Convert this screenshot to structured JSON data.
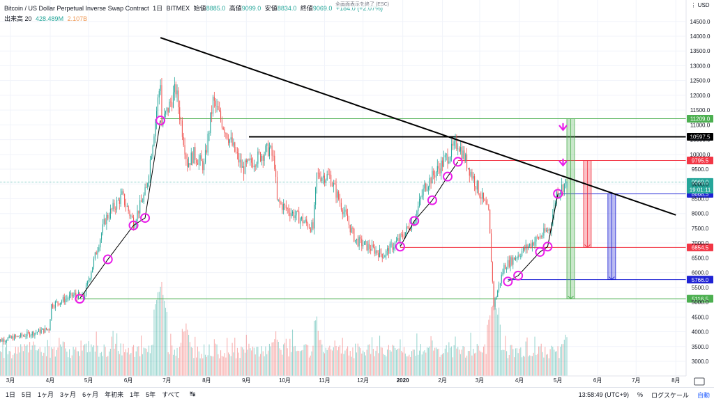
{
  "header": {
    "symbol": "Bitcoin / US Dollar Perpetual Inverse Swap Contract",
    "interval": "1日",
    "exchange": "BITMEX",
    "open_label": "始値",
    "open": "8885.0",
    "high_label": "高値",
    "high": "9099.0",
    "low_label": "安値",
    "low": "8834.0",
    "close_label": "終値",
    "close": "9069.0",
    "change": "+184.0 (+2.07%)",
    "volume_label": "出来高 20",
    "volume_value": "428.489M",
    "volume_ma": "2.107B",
    "fullscreen_hint": "全画面表示を終了 (ESC)"
  },
  "bottom_bar": {
    "ranges": [
      "1日",
      "5日",
      "1ヶ月",
      "3ヶ月",
      "6ヶ月",
      "年初来",
      "1年",
      "5年",
      "すべて"
    ],
    "calendar_icon": "calendar-icon",
    "clock": "13:58:49 (UTC+9)",
    "percent": "%",
    "log_scale": "ログスケール",
    "auto": "自動"
  },
  "colors": {
    "up": "#26a69a",
    "down": "#ef5350",
    "trendline": "#000000",
    "marker": "#e91ee9",
    "green_level": "#4caf50",
    "red_level": "#f23645",
    "blue_level": "#1e22d4",
    "black_level": "#000000"
  },
  "chart_data": {
    "type": "candlestick",
    "currency": "USD",
    "y_ticks": [
      3000,
      3500,
      4000,
      4500,
      5000,
      5500,
      6000,
      6500,
      7000,
      7500,
      8000,
      8500,
      9000,
      9500,
      10000,
      10500,
      11000,
      11500,
      12000,
      12500,
      13000,
      13500,
      14000,
      14500
    ],
    "ylim": [
      2700,
      15000
    ],
    "x_ticks": [
      "3月",
      "4月",
      "5月",
      "6月",
      "7月",
      "8月",
      "9月",
      "10月",
      "11月",
      "12月",
      "2020",
      "2月",
      "3月",
      "4月",
      "5月",
      "6月",
      "7月",
      "8月"
    ],
    "x_tick_dates": [
      "2019-03-01",
      "2019-04-01",
      "2019-05-01",
      "2019-06-01",
      "2019-07-01",
      "2019-08-01",
      "2019-09-01",
      "2019-10-01",
      "2019-11-01",
      "2019-12-01",
      "2020-01-01",
      "2020-02-01",
      "2020-03-01",
      "2020-04-01",
      "2020-05-01",
      "2020-06-01",
      "2020-07-01",
      "2020-08-01"
    ],
    "price_path": [
      [
        "2019-02-17",
        3680
      ],
      [
        "2019-03-10",
        3860
      ],
      [
        "2019-03-31",
        4100
      ],
      [
        "2019-04-02",
        4900
      ],
      [
        "2019-04-20",
        5250
      ],
      [
        "2019-04-27",
        5150
      ],
      [
        "2019-05-14",
        7800
      ],
      [
        "2019-05-27",
        8600
      ],
      [
        "2019-06-05",
        7700
      ],
      [
        "2019-06-15",
        8800
      ],
      [
        "2019-06-26",
        12500
      ],
      [
        "2019-06-27",
        11000
      ],
      [
        "2019-07-08",
        12200
      ],
      [
        "2019-07-17",
        9700
      ],
      [
        "2019-07-22",
        10000
      ],
      [
        "2019-07-30",
        9600
      ],
      [
        "2019-08-06",
        11800
      ],
      [
        "2019-08-29",
        9500
      ],
      [
        "2019-09-19",
        10200
      ],
      [
        "2019-09-23",
        9700
      ],
      [
        "2019-09-25",
        8400
      ],
      [
        "2019-10-23",
        7500
      ],
      [
        "2019-10-26",
        9300
      ],
      [
        "2019-11-05",
        9250
      ],
      [
        "2019-11-25",
        7100
      ],
      [
        "2019-12-17",
        6600
      ],
      [
        "2019-12-31",
        7200
      ],
      [
        "2020-01-10",
        7800
      ],
      [
        "2020-01-18",
        8900
      ],
      [
        "2020-02-13",
        10400
      ],
      [
        "2020-02-25",
        9200
      ],
      [
        "2020-03-08",
        8000
      ],
      [
        "2020-03-12",
        4900
      ],
      [
        "2020-03-20",
        6200
      ],
      [
        "2020-04-05",
        6800
      ],
      [
        "2020-04-25",
        7500
      ],
      [
        "2020-04-30",
        8700
      ],
      [
        "2020-05-08",
        9069
      ]
    ],
    "volume_peaks": [
      [
        "2019-06-26",
        5700
      ],
      [
        "2019-07-16",
        4400
      ],
      [
        "2019-09-24",
        4150
      ],
      [
        "2019-10-26",
        4300
      ],
      [
        "2020-03-12",
        5300
      ],
      [
        "2020-05-07",
        4000
      ]
    ],
    "markers": [
      [
        "2019-04-24",
        5116.5
      ],
      [
        "2019-05-16",
        6450
      ],
      [
        "2019-06-05",
        7600
      ],
      [
        "2019-06-14",
        7850
      ],
      [
        "2019-06-26",
        11150
      ],
      [
        "2019-12-30",
        6880
      ],
      [
        "2020-01-10",
        7750
      ],
      [
        "2020-01-24",
        8450
      ],
      [
        "2020-02-05",
        9250
      ],
      [
        "2020-02-13",
        9750
      ],
      [
        "2020-03-23",
        5700
      ],
      [
        "2020-03-31",
        5900
      ],
      [
        "2020-04-17",
        6700
      ],
      [
        "2020-04-23",
        6880
      ],
      [
        "2020-05-01",
        8668.5
      ]
    ],
    "marker_chains": [
      [
        0,
        1,
        2,
        3,
        4
      ],
      [
        5,
        6,
        7,
        8,
        9
      ],
      [
        10,
        11,
        12,
        13,
        14
      ]
    ],
    "trendline": [
      [
        "2019-06-26",
        13950
      ],
      [
        "2020-08-01",
        7950
      ]
    ],
    "levels": [
      {
        "value": 11209.0,
        "label": "11209.0",
        "color": "#4caf50",
        "start": "2019-06-26",
        "width": 1
      },
      {
        "value": 10597.5,
        "label": "10597.5",
        "color": "#000000",
        "start": "2019-09-03",
        "width": 2
      },
      {
        "value": 9795.5,
        "label": "9795.5",
        "color": "#f23645",
        "start": "2020-02-13",
        "width": 1
      },
      {
        "value": 8668.5,
        "label": "8668.5",
        "color": "#1e22d4",
        "start": "2020-05-01",
        "width": 1
      },
      {
        "value": 6854.5,
        "label": "6854.5",
        "color": "#f23645",
        "start": "2019-12-30",
        "width": 1
      },
      {
        "value": 5766.0,
        "label": "5766.0",
        "color": "#1e22d4",
        "start": "2020-03-23",
        "width": 1
      },
      {
        "value": 5116.5,
        "label": "5116.5",
        "color": "#4caf50",
        "start": "2019-04-24",
        "width": 1
      }
    ],
    "current_price": {
      "value": 9069.0,
      "label": "9069.0",
      "countdown": "19:01:11",
      "color": "#26a69a"
    },
    "range_boxes": [
      {
        "from": 11209.0,
        "to": 5116.5,
        "x0": "2020-05-08",
        "x1": "2020-05-14",
        "color": "#4caf50",
        "direction": "down"
      },
      {
        "from": 9795.5,
        "to": 6854.5,
        "x0": "2020-05-21",
        "x1": "2020-05-27",
        "color": "#f23645",
        "direction": "down"
      },
      {
        "from": 8668.5,
        "to": 5766.0,
        "x0": "2020-06-09",
        "x1": "2020-06-15",
        "color": "#1e22d4",
        "direction": "down"
      }
    ],
    "arrows": [
      [
        "2020-05-05",
        10850
      ],
      [
        "2020-05-05",
        9650
      ]
    ]
  }
}
